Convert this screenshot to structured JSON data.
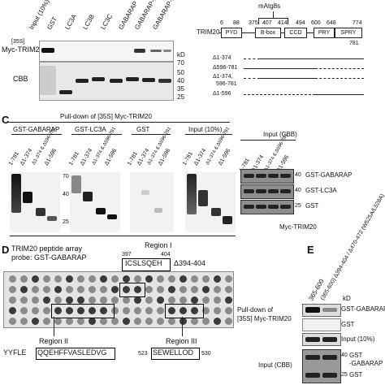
{
  "panel_a": {
    "lane_labels": [
      "Input (10%)",
      "GST",
      "LC3A",
      "LC3B",
      "LC3C",
      "GABARAP",
      "GABARAP-L1",
      "GABARAP-L2"
    ],
    "row_labels": {
      "autorad": "Myc-TRIM20",
      "cbb": "CBB",
      "s35": "[35S]"
    },
    "kd_label": "kD",
    "markers": [
      "70",
      "50",
      "40",
      "35",
      "25"
    ]
  },
  "panel_b": {
    "title": "mAtg8s",
    "protein": "TRIM20",
    "domains": [
      "PYD",
      "B-box",
      "CCD",
      "PRY",
      "SPRY"
    ],
    "positions": [
      "6",
      "88",
      "375",
      "407",
      "414",
      "494",
      "600",
      "648",
      "774"
    ],
    "end_position": "781",
    "constructs": [
      "Δ1-374",
      "Δ596-781",
      "Δ1-374,",
      "596-781",
      "Δ1-596"
    ]
  },
  "panel_c": {
    "letter": "C",
    "title": "Pull-down of [35S] Myc-TRIM20",
    "groups": [
      "GST-GABARAP",
      "GST-LC3A",
      "GST",
      "Input (10%)"
    ],
    "lane_labels": [
      "1-781",
      "Δ1-374",
      "Δ1-374 & Δ596-781",
      "Δ1-596"
    ],
    "markers": [
      "70",
      "40",
      "25"
    ],
    "cbb_title": "Input (CBB)",
    "cbb_lanes": [
      "1-781",
      "Δ1-374",
      "Δ1-374 & Δ596-781",
      "Δ1-596"
    ],
    "cbb_rows": [
      "GST-GABARAP",
      "GST-LC3A",
      "GST"
    ],
    "cbb_markers": [
      "40",
      "40",
      "25"
    ],
    "footer": "Myc-TRIM20"
  },
  "panel_d": {
    "letter": "D",
    "title_line1": "TRIM20 peptide array",
    "title_line2": "probe: GST-GABARAP",
    "region1_label": "Region I",
    "region1_start": "397",
    "region1_end": "404",
    "region1_seq": "ICSLSQEH",
    "region1_deletion": "Δ394-404",
    "region2_label": "Region II",
    "region2_prefix": "YYFLE",
    "region2_boxed": "QQEHFFVASLEDVG",
    "region3_label": "Region III",
    "region3_start": "523",
    "region3_seq": "SEWELLOD",
    "region3_end": "530",
    "side_line1": "Pull-down of",
    "side_line2": "[35S] Myc-TRIM20"
  },
  "panel_e": {
    "letter": "E",
    "lane_labels": [
      "365-600",
      "(365-600) Δ394-404 / Δ470-472 (W525A/L528A)"
    ],
    "kd_label": "kD",
    "rows": [
      "GST-GABARAP",
      "GST",
      "Input (10%)"
    ],
    "cbb_label": "Input (CBB)",
    "cbb_marker_40": "40",
    "cbb_marker_25": "25",
    "cbb_row1": "GST",
    "cbb_row1b": "-GABARAP",
    "cbb_row2": "GST"
  }
}
